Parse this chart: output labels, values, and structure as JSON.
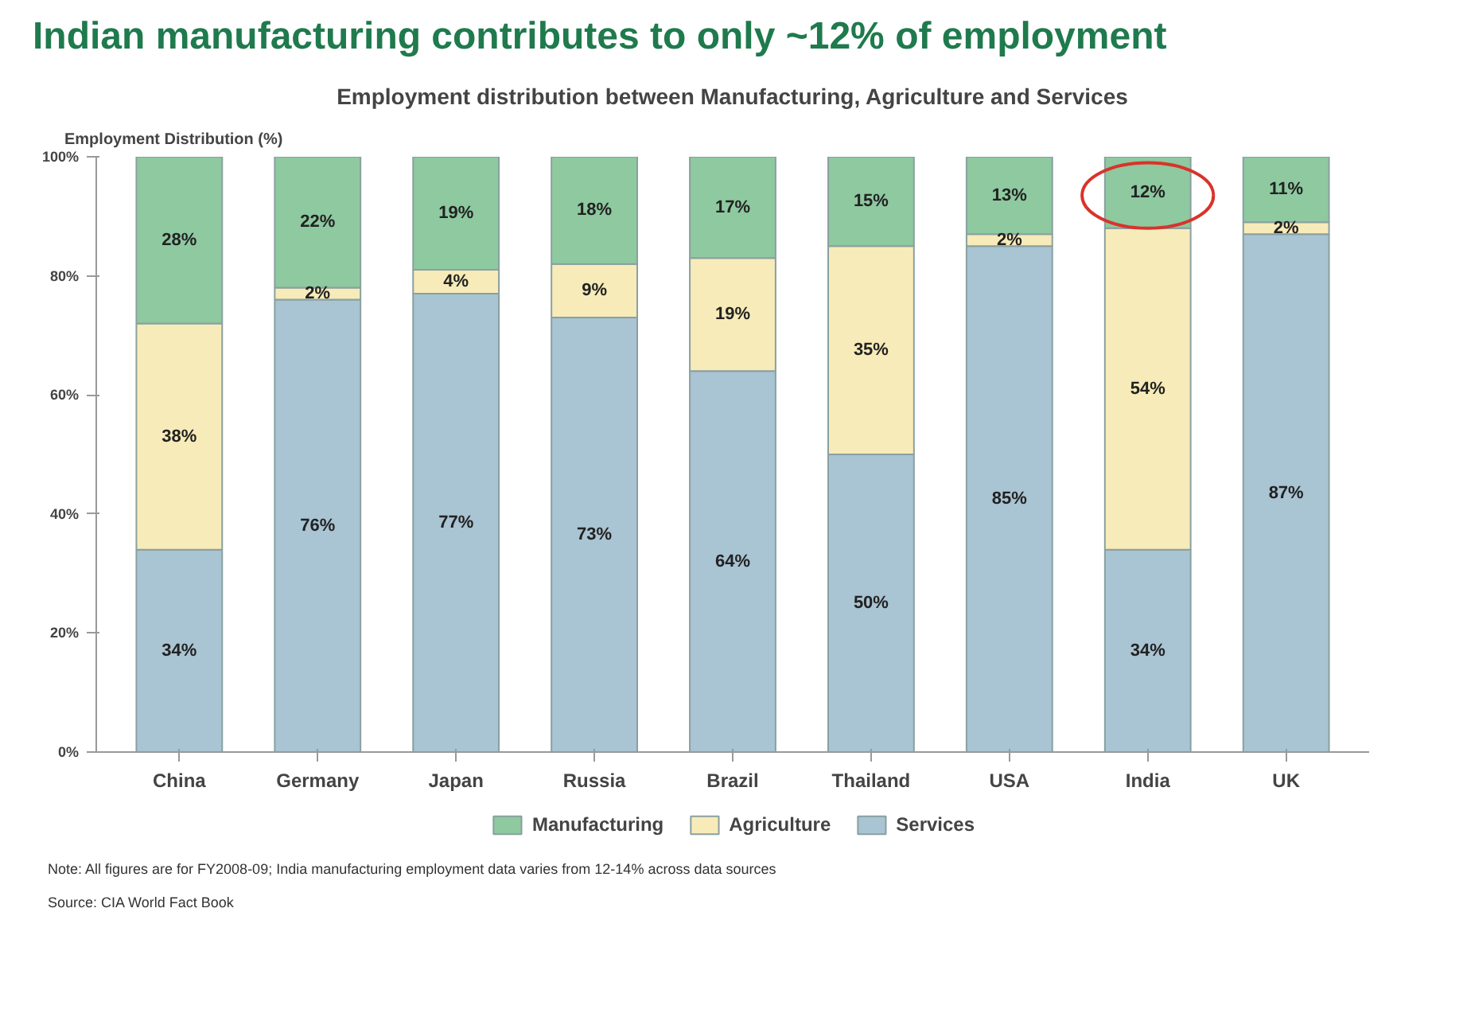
{
  "chart_data": {
    "type": "bar",
    "stacked": true,
    "title": "Indian manufacturing contributes to only ~12% of employment",
    "subtitle": "Employment distribution between Manufacturing, Agriculture and Services",
    "ylabel": "Employment Distribution (%)",
    "categories": [
      "China",
      "Germany",
      "Japan",
      "Russia",
      "Brazil",
      "Thailand",
      "USA",
      "India",
      "UK"
    ],
    "series": [
      {
        "name": "Services",
        "color": "#a9c4d3",
        "values": [
          34,
          76,
          77,
          73,
          64,
          50,
          85,
          34,
          87
        ],
        "value_labels": [
          "34%",
          "76%",
          "77%",
          "73%",
          "64%",
          "50%",
          "85%",
          "34%",
          "87%"
        ]
      },
      {
        "name": "Agriculture",
        "color": "#f7ebb9",
        "values": [
          38,
          2,
          4,
          9,
          19,
          35,
          2,
          54,
          2
        ],
        "value_labels": [
          "38%",
          "2%",
          "4%",
          "9%",
          "19%",
          "35%",
          "2%",
          "54%",
          "2%"
        ]
      },
      {
        "name": "Manufacturing",
        "color": "#8ec9a0",
        "values": [
          28,
          22,
          19,
          18,
          17,
          15,
          13,
          12,
          11
        ],
        "value_labels": [
          "28%",
          "22%",
          "19%",
          "18%",
          "17%",
          "15%",
          "13%",
          "12%",
          "11%"
        ]
      }
    ],
    "ylim": [
      0,
      100
    ],
    "yticks": [
      {
        "value": 0,
        "label": "0%"
      },
      {
        "value": 20,
        "label": "20%"
      },
      {
        "value": 40,
        "label": "40%"
      },
      {
        "value": 60,
        "label": "60%"
      },
      {
        "value": 80,
        "label": "80%"
      },
      {
        "value": 100,
        "label": "100%"
      }
    ],
    "grid": false,
    "legend": "bottom",
    "annotations": [
      "Note: All figures are for FY2008-09; India manufacturing employment data varies from 12-14% across data sources",
      "Source: CIA World Fact Book"
    ]
  }
}
